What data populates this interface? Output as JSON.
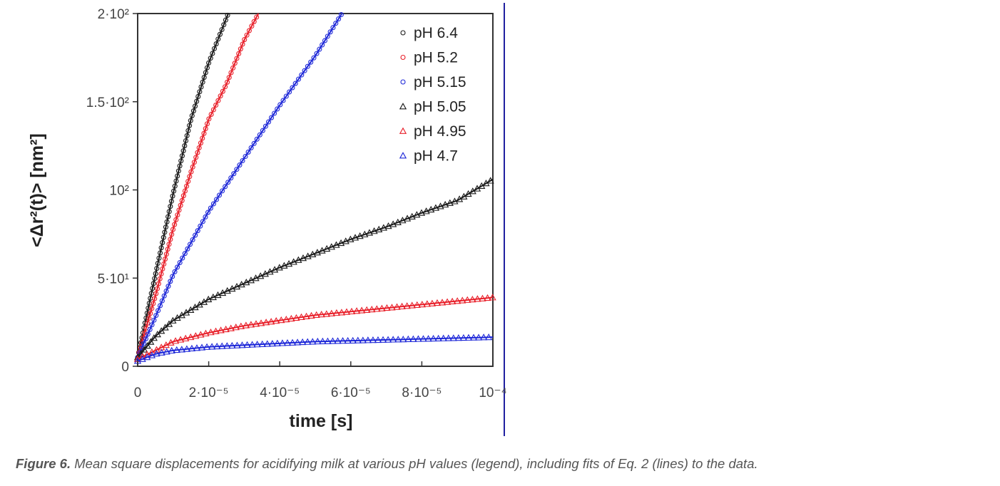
{
  "caption": {
    "label": "Figure 6.",
    "text": "Mean square displacements for acidifying milk at various pH values (legend), including fits of Eq. 2 (lines) to the data."
  },
  "chart_data": {
    "type": "scatter",
    "title": "",
    "xlabel": "time [s]",
    "ylabel": "<Δr²(t)> [nm²]",
    "xlim": [
      0,
      0.0001
    ],
    "ylim": [
      0,
      200
    ],
    "x_ticks": [
      {
        "value": 0,
        "label": "0"
      },
      {
        "value": 2e-05,
        "label": "2·10⁻⁵"
      },
      {
        "value": 4e-05,
        "label": "4·10⁻⁵"
      },
      {
        "value": 6e-05,
        "label": "6·10⁻⁵"
      },
      {
        "value": 8e-05,
        "label": "8·10⁻⁵"
      },
      {
        "value": 0.0001,
        "label": "10⁻⁴"
      }
    ],
    "y_ticks": [
      {
        "value": 0,
        "label": "0"
      },
      {
        "value": 50,
        "label": "5·10¹"
      },
      {
        "value": 100,
        "label": "10²"
      },
      {
        "value": 150,
        "label": "1.5·10²"
      },
      {
        "value": 200,
        "label": "2·10²"
      }
    ],
    "grid": false,
    "legend_position": "top-right",
    "series": [
      {
        "name": "pH 6.4",
        "color": "#1a1a1a",
        "marker": "circle",
        "x": [
          0,
          5e-06,
          1e-05,
          1.5e-05,
          2e-05,
          2.55e-05
        ],
        "y": [
          5,
          52,
          98,
          140,
          172,
          200
        ]
      },
      {
        "name": "pH 5.2",
        "color": "#e8202a",
        "marker": "circle",
        "x": [
          0,
          5e-06,
          1e-05,
          1.5e-05,
          2e-05,
          2.5e-05,
          3e-05,
          3.4e-05
        ],
        "y": [
          5,
          40,
          78,
          110,
          140,
          160,
          185,
          200
        ]
      },
      {
        "name": "pH 5.15",
        "color": "#1e28d8",
        "marker": "circle",
        "x": [
          0,
          5e-06,
          1e-05,
          2e-05,
          3e-05,
          4e-05,
          5e-05,
          5.75e-05
        ],
        "y": [
          5,
          28,
          52,
          88,
          118,
          148,
          176,
          200
        ]
      },
      {
        "name": "pH 5.05",
        "color": "#1a1a1a",
        "marker": "triangle",
        "x": [
          0,
          5e-06,
          1e-05,
          2e-05,
          3e-05,
          4e-05,
          5e-05,
          6e-05,
          7e-05,
          8e-05,
          9e-05,
          0.0001
        ],
        "y": [
          5,
          17,
          26,
          38,
          47,
          56,
          64,
          72,
          79,
          87,
          94,
          106
        ]
      },
      {
        "name": "pH 4.95",
        "color": "#e8202a",
        "marker": "triangle",
        "x": [
          0,
          5e-06,
          1e-05,
          2e-05,
          3e-05,
          4e-05,
          5e-05,
          6e-05,
          7e-05,
          8e-05,
          9e-05,
          0.0001
        ],
        "y": [
          4,
          9,
          14,
          19,
          23,
          26,
          29,
          31,
          33,
          35,
          37,
          39
        ]
      },
      {
        "name": "pH 4.7",
        "color": "#1e28d8",
        "marker": "triangle",
        "x": [
          0,
          5e-06,
          1e-05,
          2e-05,
          3e-05,
          4e-05,
          5e-05,
          6e-05,
          7e-05,
          8e-05,
          9e-05,
          0.0001
        ],
        "y": [
          3,
          7,
          9,
          11,
          12,
          13,
          14,
          14.5,
          15,
          15.5,
          16,
          16.5
        ]
      }
    ]
  }
}
